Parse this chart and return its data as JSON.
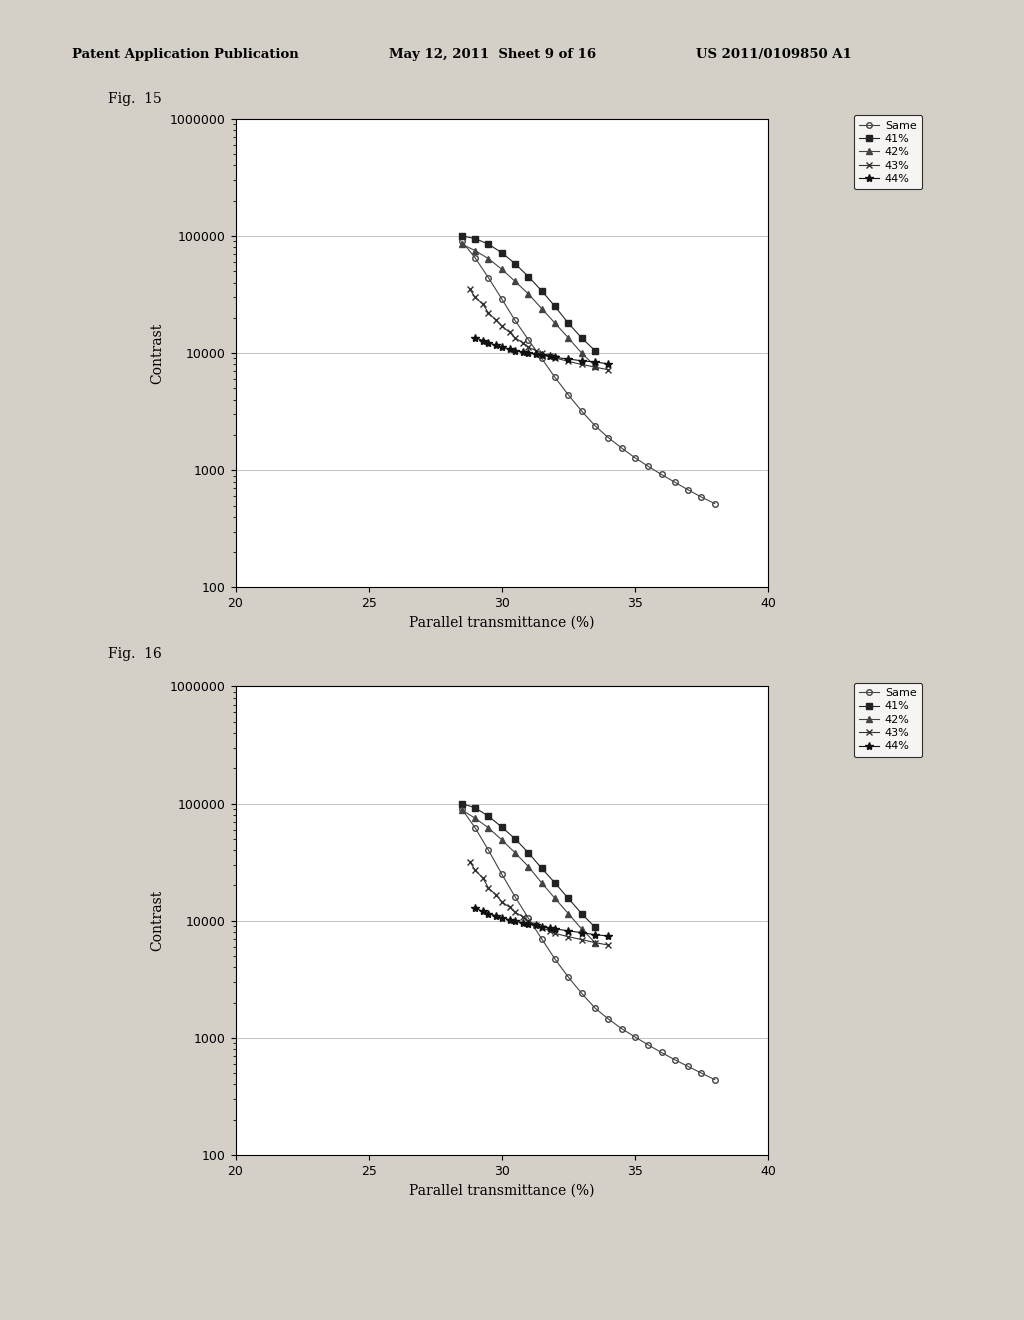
{
  "header_left": "Patent Application Publication",
  "header_mid": "May 12, 2011  Sheet 9 of 16",
  "header_right": "US 2011/0109850 A1",
  "fig15_label": "Fig.  15",
  "fig16_label": "Fig.  16",
  "xlabel": "Parallel transmittance (%)",
  "ylabel": "Contrast",
  "xlim": [
    20,
    40
  ],
  "ylim_log": [
    100,
    1000000
  ],
  "xticks": [
    20,
    25,
    30,
    35,
    40
  ],
  "bg_color": "#e8e8e8",
  "series": [
    {
      "label": "Same",
      "marker": "o",
      "marker_fill": "none",
      "linestyle": "-",
      "color": "#444444",
      "x15": [
        28.5,
        29.0,
        29.5,
        30.0,
        30.5,
        31.0,
        31.5,
        32.0,
        32.5,
        33.0,
        33.5,
        34.0,
        34.5,
        35.0,
        35.5,
        36.0,
        36.5,
        37.0,
        37.5,
        38.0
      ],
      "y15": [
        90000,
        65000,
        44000,
        29000,
        19000,
        13000,
        9000,
        6200,
        4400,
        3200,
        2400,
        1900,
        1550,
        1280,
        1080,
        920,
        790,
        680,
        590,
        520
      ],
      "x16": [
        28.5,
        29.0,
        29.5,
        30.0,
        30.5,
        31.0,
        31.5,
        32.0,
        32.5,
        33.0,
        33.5,
        34.0,
        34.5,
        35.0,
        35.5,
        36.0,
        36.5,
        37.0,
        37.5,
        38.0
      ],
      "y16": [
        90000,
        62000,
        40000,
        25000,
        16000,
        10500,
        7000,
        4700,
        3300,
        2400,
        1800,
        1450,
        1200,
        1020,
        870,
        750,
        650,
        570,
        500,
        440
      ]
    },
    {
      "label": "41%",
      "marker": "s",
      "marker_fill": "full",
      "linestyle": "-",
      "color": "#222222",
      "x15": [
        28.5,
        29.0,
        29.5,
        30.0,
        30.5,
        31.0,
        31.5,
        32.0,
        32.5,
        33.0,
        33.5
      ],
      "y15": [
        100000,
        95000,
        85000,
        72000,
        58000,
        45000,
        34000,
        25000,
        18000,
        13500,
        10500
      ],
      "x16": [
        28.5,
        29.0,
        29.5,
        30.0,
        30.5,
        31.0,
        31.5,
        32.0,
        32.5,
        33.0,
        33.5
      ],
      "y16": [
        100000,
        92000,
        78000,
        63000,
        50000,
        38000,
        28000,
        21000,
        15500,
        11500,
        8800
      ]
    },
    {
      "label": "42%",
      "marker": "^",
      "marker_fill": "full",
      "linestyle": "-",
      "color": "#444444",
      "x15": [
        28.5,
        29.0,
        29.5,
        30.0,
        30.5,
        31.0,
        31.5,
        32.0,
        32.5,
        33.0,
        33.5
      ],
      "y15": [
        85000,
        75000,
        64000,
        52000,
        41000,
        32000,
        24000,
        18000,
        13500,
        10000,
        7800
      ],
      "x16": [
        28.5,
        29.0,
        29.5,
        30.0,
        30.5,
        31.0,
        31.5,
        32.0,
        32.5,
        33.0,
        33.5
      ],
      "y16": [
        88000,
        75000,
        62000,
        49000,
        38000,
        29000,
        21000,
        15500,
        11500,
        8500,
        6500
      ]
    },
    {
      "label": "43%",
      "marker": "x",
      "marker_fill": "full",
      "linestyle": "-",
      "color": "#333333",
      "x15": [
        28.8,
        29.0,
        29.3,
        29.5,
        29.8,
        30.0,
        30.3,
        30.5,
        30.8,
        31.0,
        31.3,
        31.5,
        31.8,
        32.0,
        32.5,
        33.0,
        33.5,
        34.0
      ],
      "y15": [
        35000,
        30000,
        26000,
        22000,
        19000,
        17000,
        15000,
        13500,
        12200,
        11200,
        10500,
        10000,
        9500,
        9100,
        8500,
        8000,
        7600,
        7200
      ],
      "x16": [
        28.8,
        29.0,
        29.3,
        29.5,
        29.8,
        30.0,
        30.3,
        30.5,
        30.8,
        31.0,
        31.3,
        31.5,
        31.8,
        32.0,
        32.5,
        33.0,
        33.5,
        34.0
      ],
      "y16": [
        32000,
        27000,
        23000,
        19000,
        16500,
        14500,
        13000,
        11800,
        10800,
        9900,
        9200,
        8700,
        8200,
        7800,
        7300,
        6900,
        6500,
        6200
      ]
    },
    {
      "label": "44%",
      "marker": "*",
      "marker_fill": "full",
      "linestyle": "-",
      "color": "#111111",
      "x15": [
        29.0,
        29.3,
        29.5,
        29.8,
        30.0,
        30.3,
        30.5,
        30.8,
        31.0,
        31.3,
        31.5,
        31.8,
        32.0,
        32.5,
        33.0,
        33.5,
        34.0
      ],
      "y15": [
        13500,
        12800,
        12200,
        11700,
        11200,
        10800,
        10500,
        10200,
        10000,
        9800,
        9600,
        9400,
        9200,
        8900,
        8600,
        8400,
        8100
      ],
      "x16": [
        29.0,
        29.3,
        29.5,
        29.8,
        30.0,
        30.3,
        30.5,
        30.8,
        31.0,
        31.3,
        31.5,
        31.8,
        32.0,
        32.5,
        33.0,
        33.5,
        34.0
      ],
      "y16": [
        12800,
        12000,
        11500,
        11000,
        10600,
        10200,
        9900,
        9600,
        9300,
        9100,
        8900,
        8700,
        8500,
        8200,
        7900,
        7600,
        7400
      ]
    }
  ]
}
